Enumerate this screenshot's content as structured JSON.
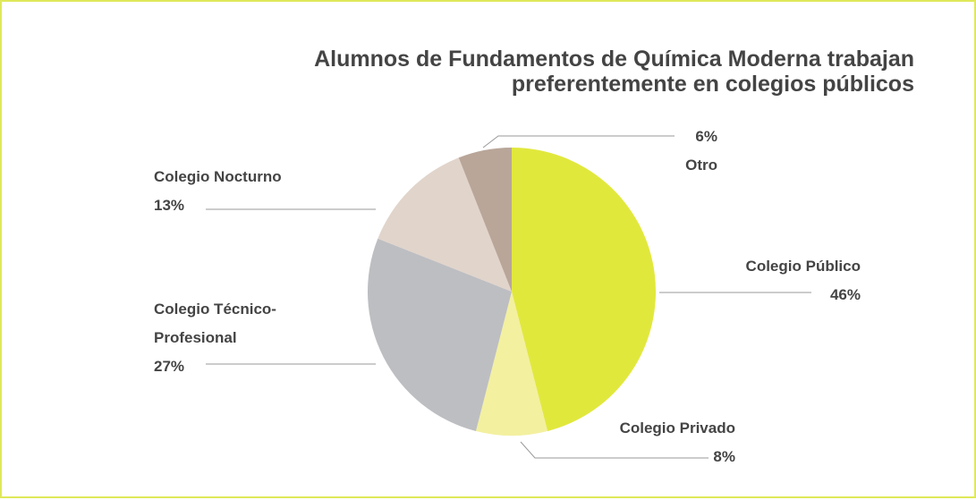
{
  "chart_data": {
    "type": "pie",
    "title": "Alumnos de Fundamentos de Química Moderna trabajan preferentemente en colegios públicos",
    "categories": [
      "Colegio Público",
      "Colegio Privado",
      "Colegio Técnico-Profesional",
      "Colegio Nocturno",
      "Otro"
    ],
    "values": [
      46,
      8,
      27,
      13,
      6
    ],
    "value_labels": [
      "46%",
      "8%",
      "27%",
      "13%",
      "6%"
    ],
    "colors": [
      "#e1e83c",
      "#f3f0a0",
      "#bdbec2",
      "#e1d4cb",
      "#b9a699"
    ]
  }
}
